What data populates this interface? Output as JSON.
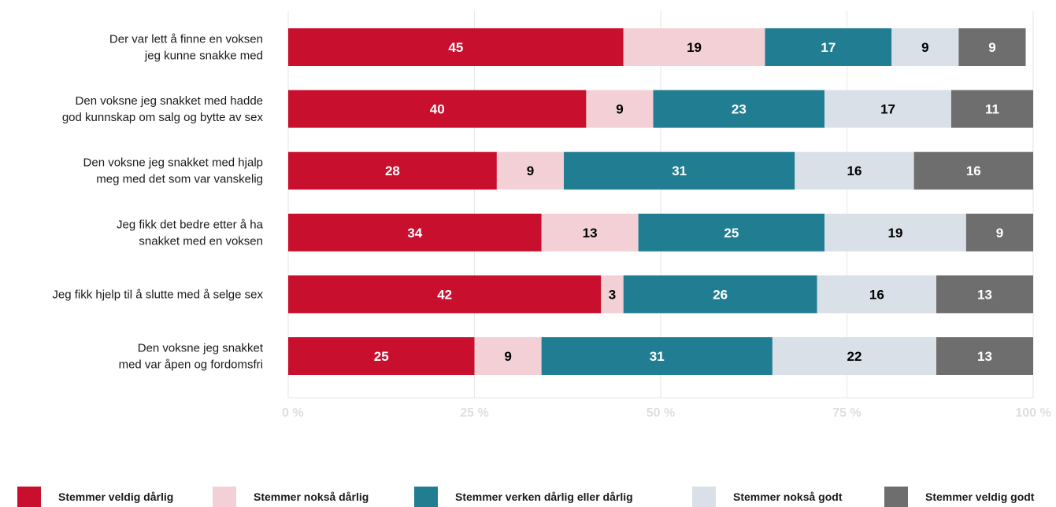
{
  "chart_data": {
    "type": "bar",
    "orientation": "horizontal",
    "stacked": true,
    "categories": [
      [
        "Der var lett å finne en voksen",
        "jeg kunne snakke med"
      ],
      [
        "Den voksne jeg snakket med hadde",
        "god kunnskap om salg og bytte av sex"
      ],
      [
        "Den voksne jeg snakket med hjalp",
        "meg med det som var vanskelig"
      ],
      [
        "Jeg fikk det bedre etter å ha",
        "snakket med en voksen"
      ],
      [
        "Jeg fikk hjelp til å slutte med å selge sex"
      ],
      [
        "Den voksne jeg snakket",
        "med var åpen og fordomsfri"
      ]
    ],
    "series": [
      {
        "name": "Stemmer veldig dårlig",
        "color": "#c8102e",
        "label_color": "#ffffff",
        "values": [
          45,
          40,
          28,
          34,
          42,
          25
        ]
      },
      {
        "name": "Stemmer nokså dårlig",
        "color": "#f2d0d5",
        "label_color": "#000000",
        "values": [
          19,
          9,
          9,
          13,
          3,
          9
        ]
      },
      {
        "name": "Stemmer verken dårlig eller dårlig",
        "color": "#217d91",
        "label_color": "#ffffff",
        "values": [
          17,
          23,
          31,
          25,
          26,
          31
        ]
      },
      {
        "name": "Stemmer nokså godt",
        "color": "#d9e0e8",
        "label_color": "#000000",
        "values": [
          9,
          17,
          16,
          19,
          16,
          22
        ]
      },
      {
        "name": "Stemmer veldig godt",
        "color": "#6e6e6e",
        "label_color": "#ffffff",
        "values": [
          9,
          11,
          16,
          9,
          13,
          13
        ]
      }
    ],
    "xlim": [
      0,
      100
    ],
    "x_ticks": [
      "0 %",
      "25 %",
      "50 %",
      "75 %",
      "100 %"
    ],
    "grid": true,
    "legend_position": "bottom"
  }
}
